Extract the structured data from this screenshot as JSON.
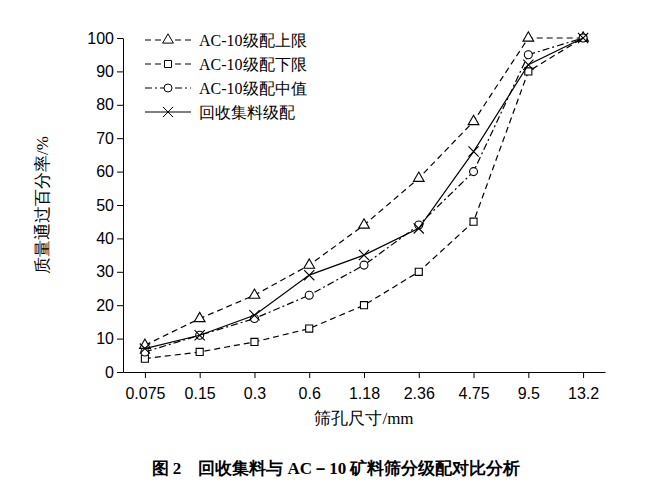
{
  "chart_data": {
    "type": "line",
    "title": "图 2　回收集料与 AC－10 矿料筛分级配对比分析",
    "x_label": "筛孔尺寸/mm",
    "y_label": "质量通过百分率/%",
    "categories": [
      "0.075",
      "0.15",
      "0.3",
      "0.6",
      "1.18",
      "2.36",
      "4.75",
      "9.5",
      "13.2"
    ],
    "ylim": [
      0,
      100
    ],
    "yticks": [
      0,
      10,
      20,
      30,
      40,
      50,
      60,
      70,
      80,
      90,
      100
    ],
    "legend": "upper left",
    "grid": false,
    "series": [
      {
        "name": "AC-10级配上限",
        "color": "#000000",
        "marker": "triangle",
        "line_style": "dashed",
        "values": [
          8,
          16,
          23,
          32,
          44,
          58,
          75,
          100,
          100
        ]
      },
      {
        "name": "AC-10级配下限",
        "color": "#000000",
        "marker": "square",
        "line_style": "dashed",
        "values": [
          4,
          6,
          9,
          13,
          20,
          30,
          45,
          90,
          100
        ]
      },
      {
        "name": "AC-10级配中值",
        "color": "#000000",
        "marker": "circle",
        "line_style": "dashdot",
        "values": [
          6,
          11,
          16,
          23,
          32,
          44,
          60,
          95,
          100
        ]
      },
      {
        "name": "回收集料级配",
        "color": "#000000",
        "marker": "x",
        "line_style": "solid",
        "values": [
          7,
          11,
          17,
          29,
          35,
          43,
          66,
          92,
          100
        ]
      }
    ]
  }
}
